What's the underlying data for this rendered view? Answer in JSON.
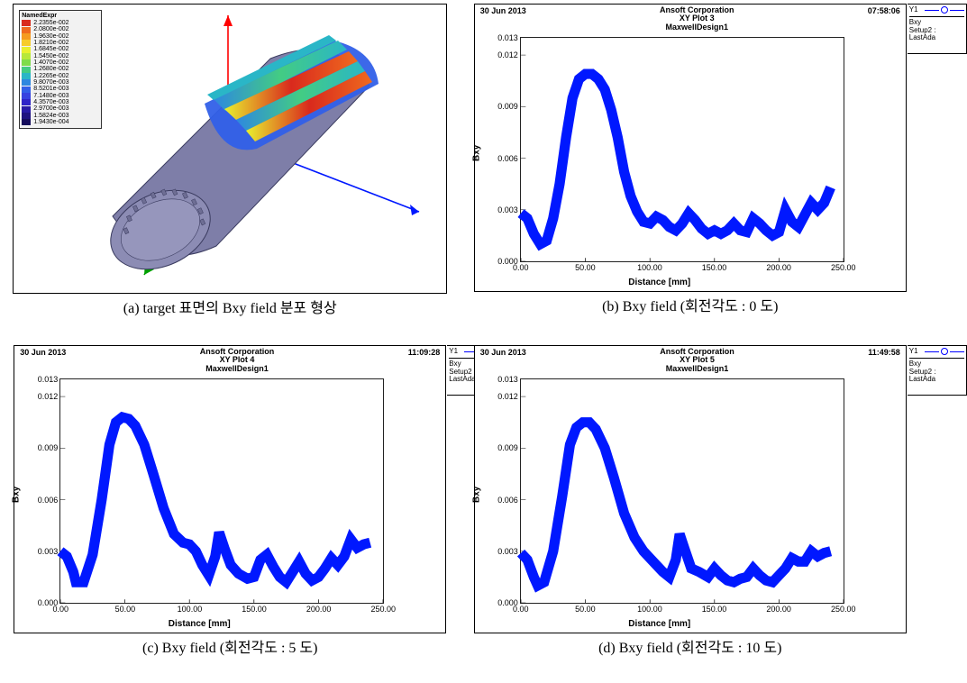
{
  "captions": {
    "a": "(a) target 표면의 Bxy field 분포 형상",
    "b": "(b) Bxy field (회전각도 : 0 도)",
    "c": "(c) Bxy field (회전각도 : 5 도)",
    "d": "(d) Bxy field (회전각도 : 10 도)"
  },
  "panelA": {
    "viewport_bg": "#ffffff",
    "cylinder_body": "#7e7ea8",
    "cylinder_edge": "#3a3b5f",
    "axis_x": "#0018ff",
    "axis_y": "#ff0000",
    "axis_z": "#00a000",
    "colorbar": {
      "title": "NamedExpr",
      "entries": [
        {
          "hex": "#d92a1d",
          "label": "2.2355e-002"
        },
        {
          "hex": "#ef6a1f",
          "label": "2.0800e-002"
        },
        {
          "hex": "#f59b21",
          "label": "1.9630e-002"
        },
        {
          "hex": "#f7cc2a",
          "label": "1.8210e-002"
        },
        {
          "hex": "#e9f02e",
          "label": "1.6845e-002"
        },
        {
          "hex": "#b7e83a",
          "label": "1.5450e-002"
        },
        {
          "hex": "#7fdc4a",
          "label": "1.4070e-002"
        },
        {
          "hex": "#43cc83",
          "label": "1.2680e-002"
        },
        {
          "hex": "#2ab6c7",
          "label": "1.2265e-002"
        },
        {
          "hex": "#2e88e0",
          "label": "9.8070e-003"
        },
        {
          "hex": "#3260e8",
          "label": "8.5201e-003"
        },
        {
          "hex": "#3742e0",
          "label": "7.1480e-003"
        },
        {
          "hex": "#2f24c8",
          "label": "4.3570e-003"
        },
        {
          "hex": "#281aa6",
          "label": "2.9700e-003"
        },
        {
          "hex": "#1f1280",
          "label": "1.5824e-003"
        },
        {
          "hex": "#150c5c",
          "label": "1.9430e-004"
        }
      ]
    },
    "contour_palette": [
      "#d92a1d",
      "#ef6a1f",
      "#f59b21",
      "#f7cc2a",
      "#e9f02e",
      "#b7e83a",
      "#7fdc4a",
      "#43cc83",
      "#2ab6c7",
      "#2e88e0",
      "#3260e8",
      "#3742e0"
    ]
  },
  "plot_common": {
    "date": "30 Jun 2013",
    "corp": "Ansoft Corporation",
    "design": "MaxwellDesign1",
    "xlabel": "Distance [mm]",
    "ylabel": "Bxy",
    "xlim": [
      0,
      250
    ],
    "xtick_step": 50,
    "xtick_fmt": "fixed2",
    "ylim": [
      0,
      0.013
    ],
    "ytick_step": 0.003,
    "ytick_fixed": 3,
    "line_color": "#0018ff",
    "line_width": 1.4,
    "marker": "circle",
    "marker_size": 0,
    "grid_color": "#e0e0e0",
    "grid": false,
    "background": "#ffffff",
    "legend": {
      "series": "Y1",
      "meta1": "Bxy",
      "meta2": "Setup2 : LastAda"
    }
  },
  "plots": {
    "b": {
      "time": "07:58:06",
      "title": "XY Plot 3",
      "data": [
        [
          0,
          0.0028
        ],
        [
          5,
          0.0025
        ],
        [
          10,
          0.0016
        ],
        [
          15,
          0.001
        ],
        [
          20,
          0.0012
        ],
        [
          25,
          0.0025
        ],
        [
          30,
          0.0045
        ],
        [
          35,
          0.0072
        ],
        [
          40,
          0.0095
        ],
        [
          45,
          0.0106
        ],
        [
          50,
          0.0109
        ],
        [
          55,
          0.0109
        ],
        [
          60,
          0.0106
        ],
        [
          65,
          0.01
        ],
        [
          70,
          0.0088
        ],
        [
          75,
          0.0072
        ],
        [
          80,
          0.0052
        ],
        [
          85,
          0.0038
        ],
        [
          90,
          0.0029
        ],
        [
          95,
          0.0023
        ],
        [
          100,
          0.0022
        ],
        [
          105,
          0.0026
        ],
        [
          110,
          0.0024
        ],
        [
          115,
          0.002
        ],
        [
          120,
          0.0018
        ],
        [
          125,
          0.0022
        ],
        [
          130,
          0.0028
        ],
        [
          135,
          0.0024
        ],
        [
          140,
          0.0019
        ],
        [
          145,
          0.0016
        ],
        [
          150,
          0.0018
        ],
        [
          155,
          0.0016
        ],
        [
          160,
          0.0018
        ],
        [
          165,
          0.0022
        ],
        [
          170,
          0.0018
        ],
        [
          175,
          0.0017
        ],
        [
          180,
          0.0025
        ],
        [
          185,
          0.0022
        ],
        [
          190,
          0.0018
        ],
        [
          195,
          0.0015
        ],
        [
          200,
          0.0017
        ],
        [
          205,
          0.003
        ],
        [
          210,
          0.0023
        ],
        [
          215,
          0.002
        ],
        [
          220,
          0.0027
        ],
        [
          225,
          0.0034
        ],
        [
          230,
          0.003
        ],
        [
          235,
          0.0034
        ],
        [
          240,
          0.0043
        ]
      ]
    },
    "c": {
      "time": "11:09:28",
      "title": "XY Plot 4",
      "data": [
        [
          0,
          0.003
        ],
        [
          5,
          0.0027
        ],
        [
          10,
          0.0018
        ],
        [
          12,
          0.0012
        ],
        [
          18,
          0.0012
        ],
        [
          25,
          0.0028
        ],
        [
          32,
          0.006
        ],
        [
          38,
          0.0092
        ],
        [
          43,
          0.0105
        ],
        [
          48,
          0.0108
        ],
        [
          53,
          0.0107
        ],
        [
          58,
          0.0103
        ],
        [
          65,
          0.0092
        ],
        [
          72,
          0.0075
        ],
        [
          80,
          0.0055
        ],
        [
          88,
          0.004
        ],
        [
          95,
          0.0035
        ],
        [
          100,
          0.0034
        ],
        [
          105,
          0.003
        ],
        [
          110,
          0.0022
        ],
        [
          115,
          0.0016
        ],
        [
          120,
          0.0027
        ],
        [
          123,
          0.0041
        ],
        [
          127,
          0.0032
        ],
        [
          132,
          0.0022
        ],
        [
          138,
          0.0017
        ],
        [
          145,
          0.0014
        ],
        [
          150,
          0.0015
        ],
        [
          155,
          0.0025
        ],
        [
          160,
          0.0028
        ],
        [
          165,
          0.0021
        ],
        [
          170,
          0.0015
        ],
        [
          175,
          0.0012
        ],
        [
          180,
          0.0018
        ],
        [
          185,
          0.0024
        ],
        [
          190,
          0.0017
        ],
        [
          195,
          0.0013
        ],
        [
          200,
          0.0015
        ],
        [
          205,
          0.002
        ],
        [
          210,
          0.0026
        ],
        [
          215,
          0.0022
        ],
        [
          220,
          0.0027
        ],
        [
          225,
          0.0037
        ],
        [
          230,
          0.0032
        ],
        [
          235,
          0.0034
        ],
        [
          240,
          0.0035
        ]
      ]
    },
    "d": {
      "time": "11:49:58",
      "title": "XY Plot 5",
      "data": [
        [
          0,
          0.0029
        ],
        [
          5,
          0.0025
        ],
        [
          10,
          0.0015
        ],
        [
          13,
          0.001
        ],
        [
          18,
          0.0012
        ],
        [
          25,
          0.003
        ],
        [
          32,
          0.0062
        ],
        [
          38,
          0.0092
        ],
        [
          43,
          0.0102
        ],
        [
          48,
          0.0105
        ],
        [
          53,
          0.0105
        ],
        [
          58,
          0.0101
        ],
        [
          65,
          0.009
        ],
        [
          72,
          0.0073
        ],
        [
          80,
          0.0052
        ],
        [
          88,
          0.0038
        ],
        [
          95,
          0.003
        ],
        [
          100,
          0.0026
        ],
        [
          105,
          0.0022
        ],
        [
          110,
          0.0018
        ],
        [
          115,
          0.0015
        ],
        [
          120,
          0.0025
        ],
        [
          123,
          0.004
        ],
        [
          127,
          0.0031
        ],
        [
          132,
          0.002
        ],
        [
          138,
          0.0018
        ],
        [
          145,
          0.0015
        ],
        [
          150,
          0.002
        ],
        [
          155,
          0.0016
        ],
        [
          160,
          0.0013
        ],
        [
          165,
          0.0012
        ],
        [
          170,
          0.0014
        ],
        [
          175,
          0.0015
        ],
        [
          180,
          0.002
        ],
        [
          185,
          0.0016
        ],
        [
          190,
          0.0013
        ],
        [
          195,
          0.0012
        ],
        [
          200,
          0.0016
        ],
        [
          205,
          0.002
        ],
        [
          210,
          0.0026
        ],
        [
          215,
          0.0024
        ],
        [
          220,
          0.0024
        ],
        [
          225,
          0.003
        ],
        [
          230,
          0.0027
        ],
        [
          235,
          0.0029
        ],
        [
          240,
          0.003
        ]
      ]
    }
  }
}
